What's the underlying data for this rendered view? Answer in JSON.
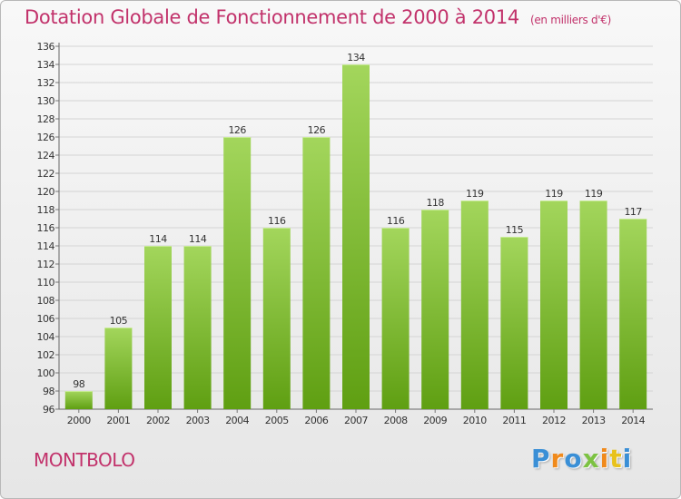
{
  "header": {
    "title": "Dotation Globale de Fonctionnement de 2000 à 2014",
    "unit": "(en milliers d'€)"
  },
  "footer": {
    "town": "MONTBOLO",
    "logo": {
      "letters": [
        "P",
        "r",
        "o",
        "x",
        "i",
        "t",
        "i"
      ],
      "colors": [
        "#3a8fd6",
        "#f08a1c",
        "#3a8fd6",
        "#7cc242",
        "#f08a1c",
        "#e8c21c",
        "#3a8fd6"
      ]
    }
  },
  "chart_data": {
    "type": "bar",
    "title": "Dotation Globale de Fonctionnement de 2000 à 2014",
    "categories": [
      "2000",
      "2001",
      "2002",
      "2003",
      "2004",
      "2005",
      "2006",
      "2007",
      "2008",
      "2009",
      "2010",
      "2011",
      "2012",
      "2013",
      "2014"
    ],
    "values": [
      98,
      105,
      114,
      114,
      126,
      116,
      126,
      134,
      116,
      118,
      119,
      115,
      119,
      119,
      117
    ],
    "ylim": [
      96,
      136
    ],
    "yticks": [
      96,
      98,
      100,
      102,
      104,
      106,
      108,
      110,
      112,
      114,
      116,
      118,
      120,
      122,
      124,
      126,
      128,
      130,
      132,
      134,
      136
    ],
    "grid": true,
    "colors": {
      "bar_top": "#a3d65c",
      "bar_bottom": "#5f9f12",
      "title": "#c2326b"
    }
  }
}
